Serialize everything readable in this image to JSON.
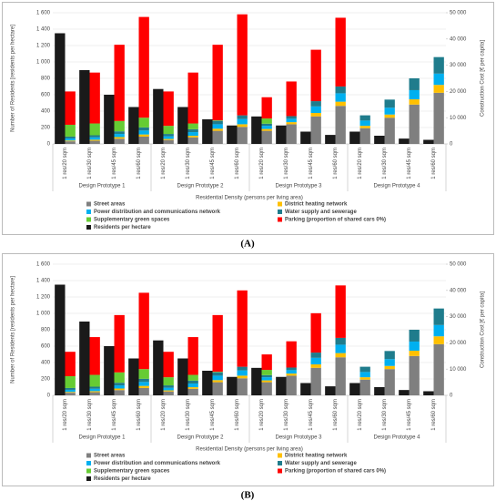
{
  "chart_data": [
    {
      "type": "bar",
      "stacked": true,
      "label": "(A)",
      "y_label": "Number of Residents [residents per hectare]",
      "y2_label": "Construction Cost [€ per capita]",
      "x_label": "Residential Density (persons per living area)",
      "categories": [
        "1 res/20 sqm",
        "1 res/30 sqm",
        "1 res/45 sqm",
        "1 res/60 sqm",
        "1 res/20 sqm",
        "1 res/30 sqm",
        "1 res/45 sqm",
        "1 res/60 sqm",
        "1 res/20 sqm",
        "1 res/30 sqm",
        "1 res/45 sqm",
        "1 res/60 sqm",
        "1 res/20 sqm",
        "1 res/30 sqm",
        "1 res/45 sqm",
        "1 res/60 sqm"
      ],
      "groups": [
        "Design Prototype 1",
        "Design Prototype 2",
        "Design Prototype 3",
        "Design Prototype 4"
      ],
      "ylim": [
        0,
        1600
      ],
      "yticks": [
        0,
        200,
        400,
        600,
        800,
        {
          "value": 1000,
          "label": "1 000"
        },
        {
          "value": 1200,
          "label": "1 200"
        },
        {
          "value": 1400,
          "label": "1 400"
        },
        {
          "value": 1600,
          "label": "1 600"
        }
      ],
      "y2lim": [
        0,
        50000
      ],
      "y2ticks": [
        0,
        {
          "value": 10000,
          "label": "10 000"
        },
        {
          "value": 20000,
          "label": "20 000"
        },
        {
          "value": 30000,
          "label": "30 000"
        },
        {
          "value": 40000,
          "label": "40 000"
        },
        {
          "value": 50000,
          "label": "50 000"
        }
      ],
      "series": [
        {
          "name": "Street areas",
          "color": "#7f7f7f",
          "axis": "y2",
          "values": [
            1000,
            1200,
            2000,
            2800,
            1500,
            2500,
            5000,
            6500,
            5000,
            7500,
            10500,
            14500,
            6000,
            10000,
            15000,
            19500
          ]
        },
        {
          "name": "District heating network",
          "color": "#ffc000",
          "axis": "y2",
          "values": [
            300,
            400,
            600,
            800,
            400,
            600,
            800,
            1000,
            700,
            800,
            1300,
            1600,
            900,
            1200,
            2000,
            3000
          ]
        },
        {
          "name": "Power distribution and communications network",
          "color": "#00b0f0",
          "axis": "y2",
          "values": [
            800,
            900,
            1200,
            1500,
            1000,
            1400,
            1700,
            2000,
            1200,
            1300,
            2500,
            3200,
            2000,
            2600,
            3500,
            4300
          ]
        },
        {
          "name": "Water supply and sewerage",
          "color": "#1f7c8c",
          "axis": "y2",
          "values": [
            700,
            800,
            1000,
            1200,
            900,
            1100,
            1300,
            1400,
            800,
            1000,
            2000,
            2600,
            2000,
            3100,
            4500,
            6300
          ]
        },
        {
          "name": "Supplementary green spaces",
          "color": "#66cc33",
          "axis": "y2",
          "values": [
            4500,
            4500,
            3950,
            3700,
            3100,
            2200,
            200,
            0,
            2000,
            0,
            0,
            0,
            0,
            0,
            0,
            0
          ]
        },
        {
          "name": "Parking (proportion of shared cars 0%)",
          "color": "#ff0000",
          "axis": "y2",
          "values": [
            12700,
            19400,
            29050,
            38400,
            13100,
            19400,
            28800,
            38500,
            8100,
            13200,
            19600,
            26200,
            0,
            0,
            0,
            0
          ]
        },
        {
          "name": "Residents per hectare",
          "color": "#1a1a1a",
          "axis": "y",
          "values": [
            1350,
            900,
            600,
            450,
            670,
            450,
            300,
            225,
            335,
            225,
            150,
            110,
            150,
            100,
            65,
            50
          ]
        }
      ]
    },
    {
      "type": "bar",
      "stacked": true,
      "label": "(B)",
      "y_label": "Number of Residents [residents per hectare]",
      "y2_label": "Construction Cost [€ per capita]",
      "x_label": "Residential Density (persons per living area)",
      "categories": [
        "1 res/20 sqm",
        "1 res/30 sqm",
        "1 res/45 sqm",
        "1 res/60 sqm",
        "1 res/20 sqm",
        "1 res/30 sqm",
        "1 res/45 sqm",
        "1 res/60 sqm",
        "1 res/20 sqm",
        "1 res/30 sqm",
        "1 res/45 sqm",
        "1 res/60 sqm",
        "1 res/20 sqm",
        "1 res/30 sqm",
        "1 res/45 sqm",
        "1 res/60 sqm"
      ],
      "groups": [
        "Design Prototype 1",
        "Design Prototype 2",
        "Design Prototype 3",
        "Design Prototype 4"
      ],
      "ylim": [
        0,
        1600
      ],
      "yticks": [
        0,
        200,
        400,
        600,
        800,
        {
          "value": 1000,
          "label": "1 000"
        },
        {
          "value": 1200,
          "label": "1 200"
        },
        {
          "value": 1400,
          "label": "1 400"
        },
        {
          "value": 1600,
          "label": "1 600"
        }
      ],
      "y2lim": [
        0,
        50000
      ],
      "y2ticks": [
        0,
        {
          "value": 10000,
          "label": "10 000"
        },
        {
          "value": 20000,
          "label": "20 000"
        },
        {
          "value": 30000,
          "label": "30 000"
        },
        {
          "value": 40000,
          "label": "40 000"
        },
        {
          "value": 50000,
          "label": "50 000"
        }
      ],
      "series": [
        {
          "name": "Street areas",
          "color": "#7f7f7f",
          "axis": "y2",
          "values": [
            1000,
            1200,
            2000,
            2800,
            1500,
            2500,
            5000,
            6500,
            5000,
            7500,
            10500,
            14500,
            6000,
            10000,
            15000,
            19500
          ]
        },
        {
          "name": "District heating network",
          "color": "#ffc000",
          "axis": "y2",
          "values": [
            300,
            400,
            600,
            800,
            400,
            600,
            800,
            1000,
            700,
            800,
            1300,
            1600,
            900,
            1200,
            2000,
            3000
          ]
        },
        {
          "name": "Power distribution and communications network",
          "color": "#00b0f0",
          "axis": "y2",
          "values": [
            800,
            900,
            1200,
            1500,
            1000,
            1400,
            1700,
            2000,
            1200,
            1300,
            2500,
            3200,
            2000,
            2600,
            3500,
            4300
          ]
        },
        {
          "name": "Water supply and sewerage",
          "color": "#1f7c8c",
          "axis": "y2",
          "values": [
            700,
            800,
            1000,
            1200,
            900,
            1100,
            1300,
            1400,
            800,
            1000,
            2000,
            2600,
            2000,
            3100,
            4500,
            6300
          ]
        },
        {
          "name": "Supplementary green spaces",
          "color": "#66cc33",
          "axis": "y2",
          "values": [
            4500,
            4500,
            3950,
            3700,
            3100,
            2200,
            200,
            0,
            2000,
            0,
            0,
            0,
            0,
            0,
            0,
            0
          ]
        },
        {
          "name": "Parking (proportion of shared cars 0%)",
          "color": "#ff0000",
          "axis": "y2",
          "values": [
            9300,
            14400,
            21850,
            29100,
            9700,
            14400,
            21600,
            29100,
            5900,
            10000,
            15000,
            20000,
            0,
            0,
            0,
            0
          ]
        },
        {
          "name": "Residents per hectare",
          "color": "#1a1a1a",
          "axis": "y",
          "values": [
            1350,
            900,
            600,
            450,
            670,
            450,
            300,
            225,
            335,
            225,
            150,
            110,
            150,
            100,
            65,
            50
          ]
        }
      ]
    }
  ]
}
